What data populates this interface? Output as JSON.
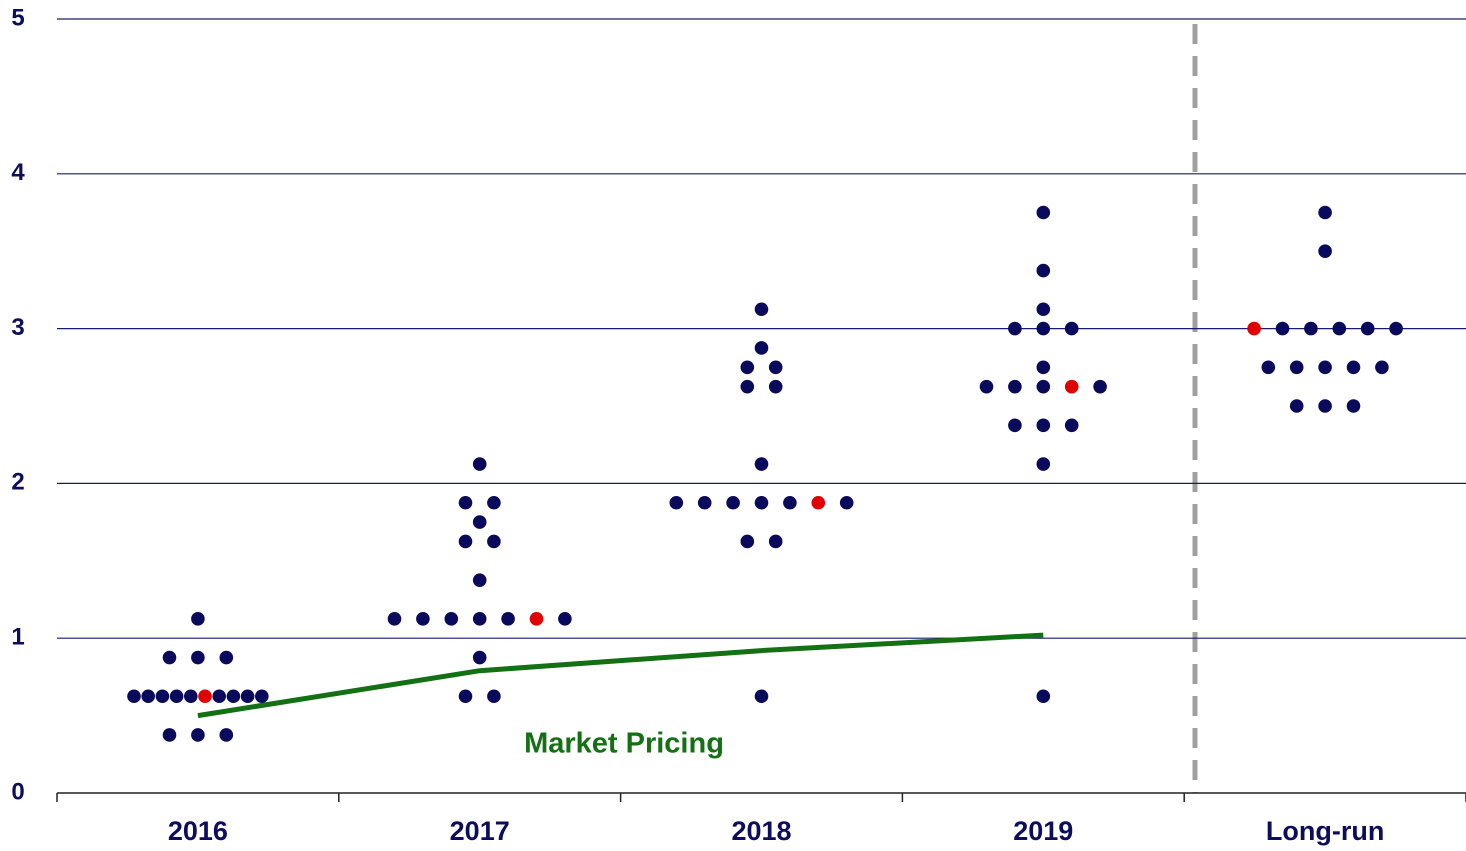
{
  "chart_data": {
    "type": "dot",
    "categories": [
      "2016",
      "2017",
      "2018",
      "2019",
      "Long-run"
    ],
    "dots": [
      [
        1.125,
        0.875,
        0.875,
        0.875,
        0.625,
        0.625,
        0.625,
        0.625,
        0.625,
        0.625,
        0.625,
        0.625,
        0.625,
        0.625,
        0.375,
        0.375,
        0.375
      ],
      [
        2.125,
        1.875,
        1.875,
        1.75,
        1.625,
        1.625,
        1.375,
        1.125,
        1.125,
        1.125,
        1.125,
        1.125,
        1.125,
        1.125,
        0.875,
        0.625,
        0.625
      ],
      [
        3.125,
        2.875,
        2.75,
        2.75,
        2.625,
        2.625,
        2.125,
        1.875,
        1.875,
        1.875,
        1.875,
        1.875,
        1.875,
        1.875,
        1.625,
        1.625,
        0.625
      ],
      [
        3.75,
        3.375,
        3.125,
        3,
        3,
        3,
        2.75,
        2.625,
        2.625,
        2.625,
        2.625,
        2.625,
        2.375,
        2.375,
        2.375,
        2.125,
        0.625
      ],
      [
        3.75,
        3.5,
        3,
        3,
        3,
        3,
        3,
        3,
        2.75,
        2.75,
        2.75,
        2.75,
        2.75,
        2.5,
        2.5,
        2.5
      ]
    ],
    "dot_color": "#0a0a5c",
    "highlight": [
      9,
      12,
      12,
      10,
      2
    ],
    "highlight_color": "#e00000",
    "line": {
      "name": "Market Pricing",
      "color": "#137013",
      "values": [
        0.5,
        0.79,
        0.92,
        1.02,
        null
      ]
    },
    "ylim": [
      0,
      5
    ],
    "yticks": [
      0,
      1,
      2,
      3,
      4,
      5
    ],
    "grid": true
  }
}
